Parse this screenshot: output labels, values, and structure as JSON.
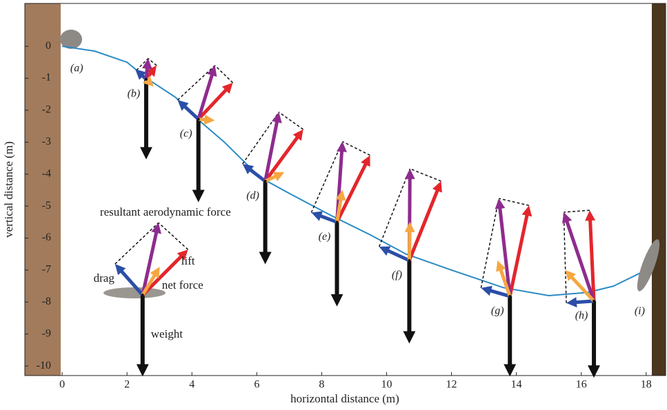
{
  "chart_data": {
    "type": "line",
    "xlabel": "horizontal distance (m)",
    "ylabel": "vertical distance (m)",
    "xlim": [
      -1.15,
      18.6
    ],
    "ylim": [
      -10.3,
      1.34
    ],
    "xticks": [
      0,
      2,
      4,
      6,
      8,
      10,
      12,
      14,
      16,
      18
    ],
    "yticks": [
      0,
      -1,
      -2,
      -3,
      -4,
      -5,
      -6,
      -7,
      -8,
      -9,
      -10
    ],
    "trajectory": {
      "color": "#2a8ac4",
      "x": [
        0,
        1,
        2,
        2.6,
        3.5,
        4.2,
        5,
        6.1,
        7,
        8.3,
        9.5,
        10.6,
        12,
        13.6,
        15,
        16.2,
        17,
        17.8
      ],
      "y": [
        0,
        -0.15,
        -0.5,
        -1,
        -1.6,
        -2.3,
        -3,
        -4.1,
        -4.6,
        -5.3,
        -5.9,
        -6.5,
        -7,
        -7.55,
        -7.8,
        -7.7,
        -7.5,
        -7.1
      ]
    },
    "colors": {
      "drag": "#2b4ea8",
      "lift": "#e3262c",
      "resultant": "#8e2c8e",
      "net": "#f5a742",
      "weight": "#111111"
    },
    "point_labels": [
      {
        "label": "(a)",
        "x": 0.45,
        "y": -0.7
      },
      {
        "label": "(i)",
        "x": 17.8,
        "y": -8.3
      }
    ],
    "stations": [
      {
        "label": "(b)",
        "x": 2.59,
        "y": -1.03,
        "drag": [
          -0.3,
          0.28
        ],
        "lift": [
          0.32,
          0.43
        ],
        "resultant": [
          0.06,
          0.65
        ],
        "net": [
          0.1,
          -0.1
        ],
        "weight": -1.94
      },
      {
        "label": "(c)",
        "x": 4.2,
        "y": -2.28,
        "drag": [
          -0.64,
          0.6
        ],
        "lift": [
          1.06,
          1.14
        ],
        "resultant": [
          0.51,
          1.68
        ],
        "net": [
          0.5,
          -0.04
        ],
        "weight": -2.03
      },
      {
        "label": "(d)",
        "x": 6.26,
        "y": -4.22,
        "drag": [
          -0.7,
          0.54
        ],
        "lift": [
          1.17,
          1.62
        ],
        "resultant": [
          0.42,
          2.16
        ],
        "net": [
          0.59,
          0.28
        ],
        "weight": -2.03
      },
      {
        "label": "(e)",
        "x": 8.47,
        "y": -5.5,
        "drag": [
          -0.79,
          0.3
        ],
        "lift": [
          1.02,
          2.09
        ],
        "resultant": [
          0.17,
          2.52
        ],
        "net": [
          0.17,
          1.01
        ],
        "weight": -2.07
      },
      {
        "label": "(f)",
        "x": 10.7,
        "y": -6.7,
        "drag": [
          -0.93,
          0.43
        ],
        "lift": [
          0.98,
          2.48
        ],
        "resultant": [
          0.02,
          2.87
        ],
        "net": [
          0.02,
          1.21
        ],
        "weight": -2.03
      },
      {
        "label": "(g)",
        "x": 13.8,
        "y": -7.82,
        "drag": [
          -0.89,
          0.26
        ],
        "lift": [
          0.59,
          2.84
        ],
        "resultant": [
          -0.34,
          3.06
        ],
        "net": [
          -0.38,
          1.12
        ],
        "weight": -1.94
      },
      {
        "label": "(h)",
        "x": 16.39,
        "y": -7.97,
        "drag": [
          -0.85,
          -0.06
        ],
        "lift": [
          -0.13,
          2.84
        ],
        "resultant": [
          -0.93,
          2.78
        ],
        "net": [
          -0.89,
          0.97
        ],
        "weight": -1.83
      }
    ],
    "key": {
      "x": 2.48,
      "y": -7.78,
      "drag": [
        -0.85,
        0.97
      ],
      "lift": [
        1.4,
        1.42
      ],
      "resultant": [
        0.49,
        2.26
      ],
      "net": [
        0.53,
        0.88
      ],
      "weight": -1.98,
      "labels": {
        "resultant": "resultant aerodynamic force",
        "lift": "lift",
        "drag": "drag",
        "net": "net force",
        "weight": "weight"
      }
    }
  }
}
